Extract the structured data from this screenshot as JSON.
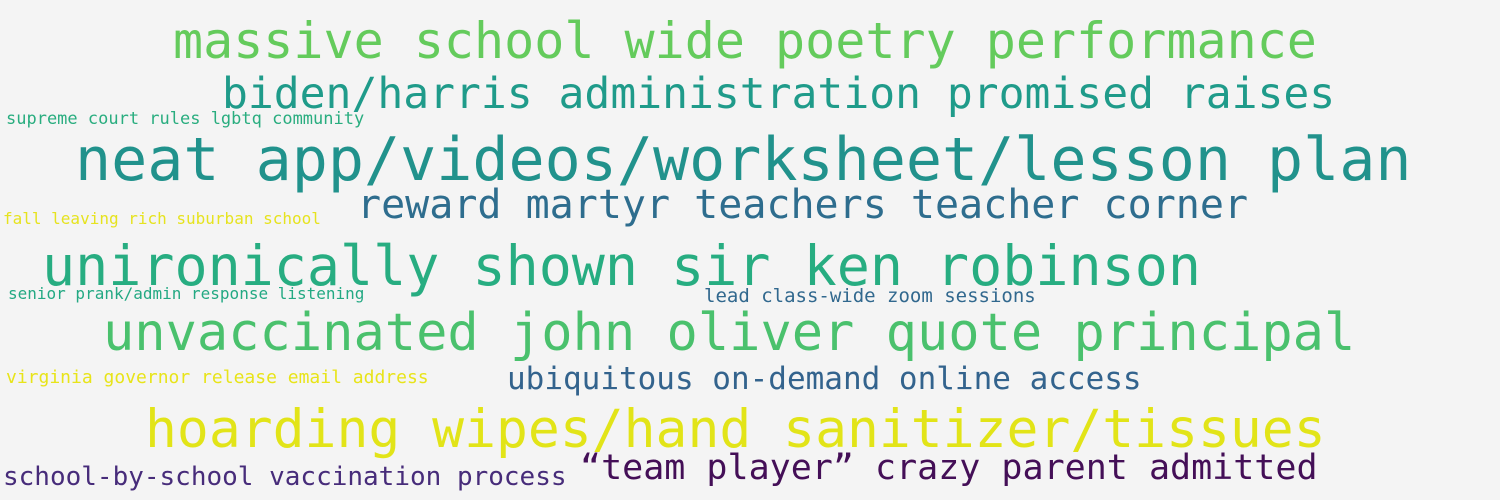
{
  "words": [
    {
      "text": "massive school wide poetry performance",
      "color": "#64cb5c"
    },
    {
      "text": "biden/harris administration promised raises",
      "color": "#1f9b8a"
    },
    {
      "text": "supreme court rules lgbtq community",
      "color": "#29ad7f"
    },
    {
      "text": "neat app/videos/worksheet/lesson plan",
      "color": "#21928c"
    },
    {
      "text": "reward martyr teachers teacher corner",
      "color": "#2e6d8e"
    },
    {
      "text": "fall leaving rich suburban school",
      "color": "#e6e31f"
    },
    {
      "text": "unironically shown sir ken robinson",
      "color": "#27ad81"
    },
    {
      "text": "senior prank/admin response listening",
      "color": "#23a983"
    },
    {
      "text": "lead class-wide zoom sessions",
      "color": "#31688e"
    },
    {
      "text": "unvaccinated john oliver quote principal",
      "color": "#4ac16d"
    },
    {
      "text": "virginia governor release email address",
      "color": "#e8e419"
    },
    {
      "text": "ubiquitous on-demand online access",
      "color": "#33638d"
    },
    {
      "text": "hoarding wipes/hand sanitizer/tissues",
      "color": "#e2e418"
    },
    {
      "text": "school-by-school vaccination process",
      "color": "#472c7a"
    },
    {
      "text": "“team player” crazy parent admitted",
      "color": "#440f57"
    }
  ]
}
